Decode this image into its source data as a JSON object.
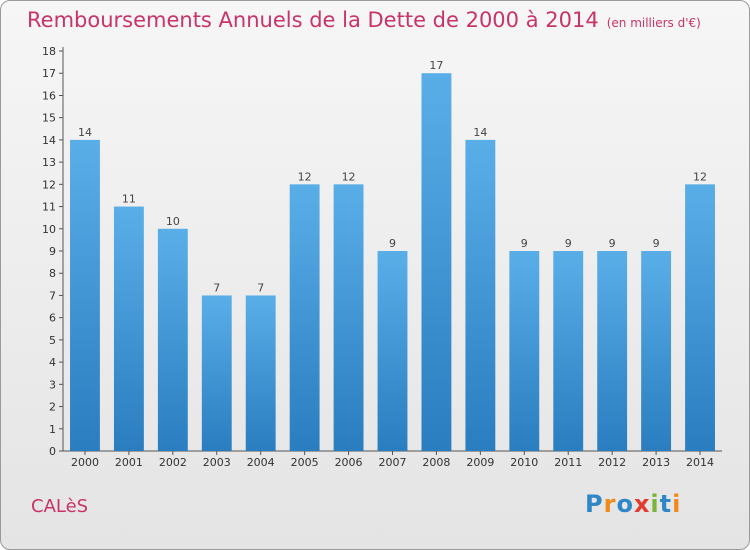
{
  "chart_data": {
    "type": "bar",
    "title": "Remboursements Annuels de la Dette de 2000 à 2014",
    "subtitle": "(en milliers d'€)",
    "categories": [
      "2000",
      "2001",
      "2002",
      "2003",
      "2004",
      "2005",
      "2006",
      "2007",
      "2008",
      "2009",
      "2010",
      "2011",
      "2012",
      "2013",
      "2014"
    ],
    "values": [
      14,
      11,
      10,
      7,
      7,
      12,
      12,
      9,
      17,
      14,
      9,
      9,
      9,
      9,
      12
    ],
    "ylim": [
      0,
      18
    ],
    "yticks": [
      0,
      1,
      2,
      3,
      4,
      5,
      6,
      7,
      8,
      9,
      10,
      11,
      12,
      13,
      14,
      15,
      16,
      17,
      18
    ],
    "grid": false,
    "legend": "none",
    "bar_color_top": "#5aaee8",
    "bar_color_bottom": "#2a7dbf"
  },
  "footer": {
    "commune": "CALèS",
    "logo": "Proxiti"
  },
  "colors": {
    "title": "#c8336a",
    "axis": "#555555"
  }
}
